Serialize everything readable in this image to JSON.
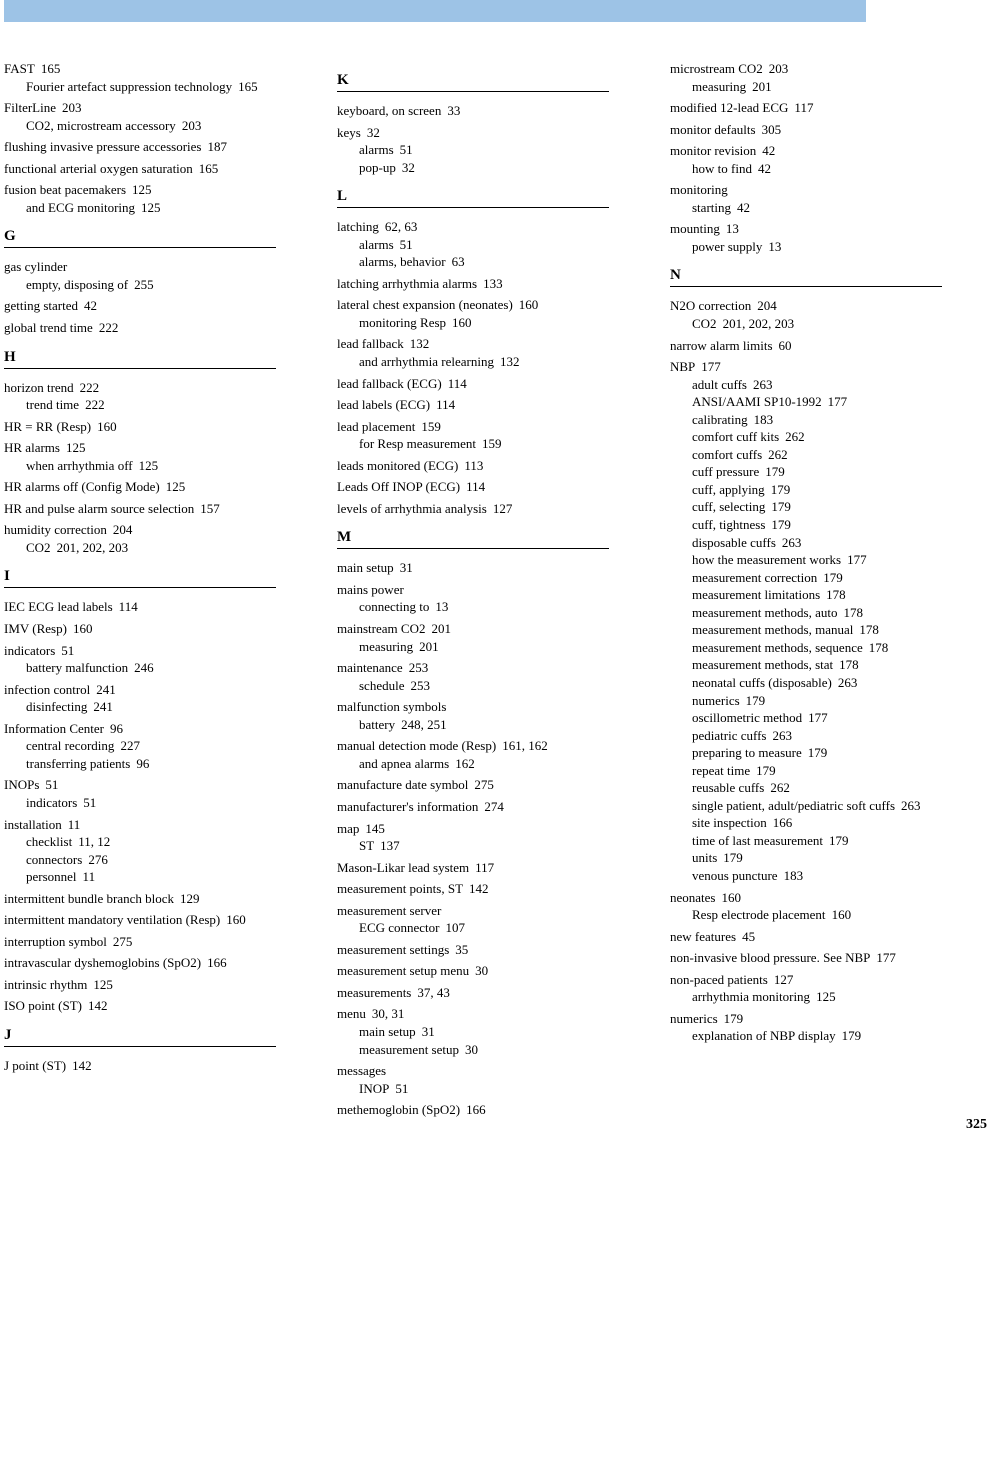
{
  "pageNumber": "325",
  "columns": [
    {
      "sections": [
        {
          "entries": [
            {
              "t": "FAST",
              "p": "165",
              "subs": [
                {
                  "t": "Fourier artefact suppression technology",
                  "p": "165"
                }
              ]
            },
            {
              "t": "FilterLine",
              "p": "203",
              "subs": [
                {
                  "t": "CO2, microstream accessory",
                  "p": "203"
                }
              ]
            },
            {
              "t": "flushing invasive pressure accessories",
              "p": "187"
            },
            {
              "t": "functional arterial oxygen saturation",
              "p": "165"
            },
            {
              "t": "fusion beat pacemakers",
              "p": "125",
              "subs": [
                {
                  "t": "and ECG monitoring",
                  "p": "125"
                }
              ]
            }
          ]
        },
        {
          "letter": "G",
          "entries": [
            {
              "t": "gas cylinder",
              "subs": [
                {
                  "t": "empty, disposing of",
                  "p": "255"
                }
              ]
            },
            {
              "t": "getting started",
              "p": "42"
            },
            {
              "t": "global trend time",
              "p": "222"
            }
          ]
        },
        {
          "letter": "H",
          "entries": [
            {
              "t": "horizon trend",
              "p": "222",
              "subs": [
                {
                  "t": "trend time",
                  "p": "222"
                }
              ]
            },
            {
              "t": "HR = RR (Resp)",
              "p": "160"
            },
            {
              "t": "HR alarms",
              "p": "125",
              "subs": [
                {
                  "t": "when arrhythmia off",
                  "p": "125"
                }
              ]
            },
            {
              "t": "HR alarms off (Config Mode)",
              "p": "125"
            },
            {
              "t": "HR and pulse alarm source selection",
              "p": "157"
            },
            {
              "t": "humidity correction",
              "p": "204",
              "subs": [
                {
                  "t": "CO2",
                  "p": "201, 202, 203"
                }
              ]
            }
          ]
        },
        {
          "letter": "I",
          "entries": [
            {
              "t": "IEC ECG lead labels",
              "p": "114"
            },
            {
              "t": "IMV (Resp)",
              "p": "160"
            },
            {
              "t": "indicators",
              "p": "51",
              "subs": [
                {
                  "t": "battery malfunction",
                  "p": "246"
                }
              ]
            },
            {
              "t": "infection control",
              "p": "241",
              "subs": [
                {
                  "t": "disinfecting",
                  "p": "241"
                }
              ]
            },
            {
              "t": "Information Center",
              "p": "96",
              "subs": [
                {
                  "t": "central recording",
                  "p": "227"
                },
                {
                  "t": "transferring patients",
                  "p": "96"
                }
              ]
            },
            {
              "t": "INOPs",
              "p": "51",
              "subs": [
                {
                  "t": "indicators",
                  "p": "51"
                }
              ]
            },
            {
              "t": "installation",
              "p": "11",
              "subs": [
                {
                  "t": "checklist",
                  "p": "11, 12"
                },
                {
                  "t": "connectors",
                  "p": "276"
                },
                {
                  "t": "personnel",
                  "p": "11"
                }
              ]
            },
            {
              "t": "intermittent bundle branch block",
              "p": "129"
            },
            {
              "t": "intermittent mandatory ventilation (Resp)",
              "p": "160"
            },
            {
              "t": "interruption symbol",
              "p": "275"
            },
            {
              "t": "intravascular dyshemoglobins (SpO2)",
              "p": "166"
            },
            {
              "t": "intrinsic rhythm",
              "p": "125"
            },
            {
              "t": "ISO point (ST)",
              "p": "142"
            }
          ]
        },
        {
          "letter": "J",
          "entries": [
            {
              "t": "J point (ST)",
              "p": "142"
            }
          ]
        }
      ]
    },
    {
      "sections": [
        {
          "letter": "K",
          "entries": [
            {
              "t": "keyboard, on screen",
              "p": "33"
            },
            {
              "t": "keys",
              "p": "32",
              "subs": [
                {
                  "t": "alarms",
                  "p": "51"
                },
                {
                  "t": "pop-up",
                  "p": "32"
                }
              ]
            }
          ]
        },
        {
          "letter": "L",
          "entries": [
            {
              "t": "latching",
              "p": "62, 63",
              "subs": [
                {
                  "t": "alarms",
                  "p": "51"
                },
                {
                  "t": "alarms, behavior",
                  "p": "63"
                }
              ]
            },
            {
              "t": "latching arrhythmia alarms",
              "p": "133"
            },
            {
              "t": "lateral chest expansion (neonates)",
              "p": "160",
              "subs": [
                {
                  "t": "monitoring Resp",
                  "p": "160"
                }
              ]
            },
            {
              "t": "lead fallback",
              "p": "132",
              "subs": [
                {
                  "t": "and arrhythmia relearning",
                  "p": "132"
                }
              ]
            },
            {
              "t": "lead fallback (ECG)",
              "p": "114"
            },
            {
              "t": "lead labels (ECG)",
              "p": "114"
            },
            {
              "t": "lead placement",
              "p": "159",
              "subs": [
                {
                  "t": "for Resp measurement",
                  "p": "159"
                }
              ]
            },
            {
              "t": "leads monitored (ECG)",
              "p": "113"
            },
            {
              "t": "Leads Off INOP (ECG)",
              "p": "114"
            },
            {
              "t": "levels of arrhythmia analysis",
              "p": "127"
            }
          ]
        },
        {
          "letter": "M",
          "entries": [
            {
              "t": "main setup",
              "p": "31"
            },
            {
              "t": "mains power",
              "subs": [
                {
                  "t": "connecting to",
                  "p": "13"
                }
              ]
            },
            {
              "t": "mainstream CO2",
              "p": "201",
              "subs": [
                {
                  "t": "measuring",
                  "p": "201"
                }
              ]
            },
            {
              "t": "maintenance",
              "p": "253",
              "subs": [
                {
                  "t": "schedule",
                  "p": "253"
                }
              ]
            },
            {
              "t": "malfunction symbols",
              "subs": [
                {
                  "t": "battery",
                  "p": "248, 251"
                }
              ]
            },
            {
              "t": "manual detection mode (Resp)",
              "p": "161, 162",
              "subs": [
                {
                  "t": "and apnea alarms",
                  "p": "162"
                }
              ]
            },
            {
              "t": "manufacture date symbol",
              "p": "275"
            },
            {
              "t": "manufacturer's information",
              "p": "274"
            },
            {
              "t": "map",
              "p": "145",
              "subs": [
                {
                  "t": "ST",
                  "p": "137"
                }
              ]
            },
            {
              "t": "Mason-Likar lead system",
              "p": "117"
            },
            {
              "t": "measurement points, ST",
              "p": "142"
            },
            {
              "t": "measurement server",
              "subs": [
                {
                  "t": "ECG connector",
                  "p": "107"
                }
              ]
            },
            {
              "t": "measurement settings",
              "p": "35"
            },
            {
              "t": "measurement setup menu",
              "p": "30"
            },
            {
              "t": "measurements",
              "p": "37, 43"
            },
            {
              "t": "menu",
              "p": "30, 31",
              "subs": [
                {
                  "t": "main setup",
                  "p": "31"
                },
                {
                  "t": "measurement setup",
                  "p": "30"
                }
              ]
            },
            {
              "t": "messages",
              "subs": [
                {
                  "t": "INOP",
                  "p": "51"
                }
              ]
            },
            {
              "t": "methemoglobin (SpO2)",
              "p": "166"
            }
          ]
        }
      ]
    },
    {
      "sections": [
        {
          "entries": [
            {
              "t": "microstream CO2",
              "p": "203",
              "subs": [
                {
                  "t": "measuring",
                  "p": "201"
                }
              ]
            },
            {
              "t": "modified 12-lead ECG",
              "p": "117"
            },
            {
              "t": "monitor defaults",
              "p": "305"
            },
            {
              "t": "monitor revision",
              "p": "42",
              "subs": [
                {
                  "t": "how to find",
                  "p": "42"
                }
              ]
            },
            {
              "t": "monitoring",
              "subs": [
                {
                  "t": "starting",
                  "p": "42"
                }
              ]
            },
            {
              "t": "mounting",
              "p": "13",
              "subs": [
                {
                  "t": "power supply",
                  "p": "13"
                }
              ]
            }
          ]
        },
        {
          "letter": "N",
          "entries": [
            {
              "t": "N2O correction",
              "p": "204",
              "subs": [
                {
                  "t": "CO2",
                  "p": "201, 202, 203"
                }
              ]
            },
            {
              "t": "narrow alarm limits",
              "p": "60"
            },
            {
              "t": "NBP",
              "p": "177",
              "subs": [
                {
                  "t": "adult cuffs",
                  "p": "263"
                },
                {
                  "t": "ANSI/AAMI SP10-1992",
                  "p": "177"
                },
                {
                  "t": "calibrating",
                  "p": "183"
                },
                {
                  "t": "comfort cuff kits",
                  "p": "262"
                },
                {
                  "t": "comfort cuffs",
                  "p": "262"
                },
                {
                  "t": "cuff pressure",
                  "p": "179"
                },
                {
                  "t": "cuff, applying",
                  "p": "179"
                },
                {
                  "t": "cuff, selecting",
                  "p": "179"
                },
                {
                  "t": "cuff, tightness",
                  "p": "179"
                },
                {
                  "t": "disposable cuffs",
                  "p": "263"
                },
                {
                  "t": "how the measurement works",
                  "p": "177"
                },
                {
                  "t": "measurement correction",
                  "p": "179"
                },
                {
                  "t": "measurement limitations",
                  "p": "178"
                },
                {
                  "t": "measurement methods, auto",
                  "p": "178"
                },
                {
                  "t": "measurement methods, manual",
                  "p": "178"
                },
                {
                  "t": "measurement methods, sequence",
                  "p": "178"
                },
                {
                  "t": "measurement methods, stat",
                  "p": "178"
                },
                {
                  "t": "neonatal cuffs (disposable)",
                  "p": "263"
                },
                {
                  "t": "numerics",
                  "p": "179"
                },
                {
                  "t": "oscillometric method",
                  "p": "177"
                },
                {
                  "t": "pediatric cuffs",
                  "p": "263"
                },
                {
                  "t": "preparing to measure",
                  "p": "179"
                },
                {
                  "t": "repeat time",
                  "p": "179"
                },
                {
                  "t": "reusable cuffs",
                  "p": "262"
                },
                {
                  "t": "single patient, adult/pediatric soft cuffs",
                  "p": "263"
                },
                {
                  "t": "site inspection",
                  "p": "166"
                },
                {
                  "t": "time of last measurement",
                  "p": "179"
                },
                {
                  "t": "units",
                  "p": "179"
                },
                {
                  "t": "venous puncture",
                  "p": "183"
                }
              ]
            },
            {
              "t": "neonates",
              "p": "160",
              "subs": [
                {
                  "t": "Resp electrode placement",
                  "p": "160"
                }
              ]
            },
            {
              "t": "new features",
              "p": "45"
            },
            {
              "t": "non-invasive blood pressure. See NBP",
              "p": "177"
            },
            {
              "t": "non-paced patients",
              "p": "127",
              "subs": [
                {
                  "t": "arrhythmia monitoring",
                  "p": "125"
                }
              ]
            },
            {
              "t": "numerics",
              "p": "179",
              "subs": [
                {
                  "t": "explanation of NBP display",
                  "p": "179"
                }
              ]
            }
          ]
        }
      ]
    }
  ]
}
